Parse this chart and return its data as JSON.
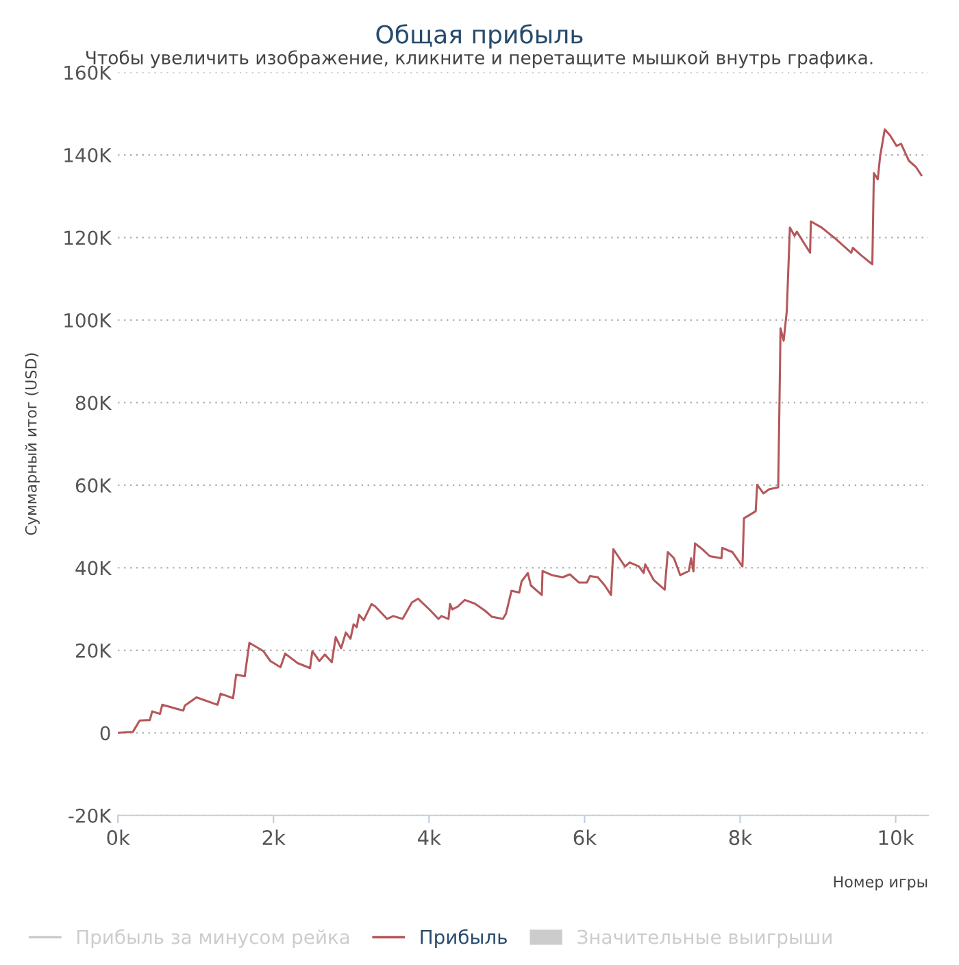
{
  "chart_data": {
    "type": "line",
    "title": "Общая прибыль",
    "subtitle": "Чтобы увеличить изображение, кликните и перетащите мышкой внутрь графика.",
    "xlabel": "Номер игры",
    "ylabel": "Суммарный итог (USD)",
    "xlim": [
      0,
      10420
    ],
    "ylim": [
      -20000,
      160000
    ],
    "xticks": [
      {
        "value": 0,
        "label": "0k"
      },
      {
        "value": 2000,
        "label": "2k"
      },
      {
        "value": 4000,
        "label": "4k"
      },
      {
        "value": 6000,
        "label": "6k"
      },
      {
        "value": 8000,
        "label": "8k"
      },
      {
        "value": 10000,
        "label": "10k"
      }
    ],
    "yticks": [
      {
        "value": -20000,
        "label": "-20K"
      },
      0,
      {
        "value": 20000,
        "label": "20K"
      },
      {
        "value": 40000,
        "label": "40K"
      },
      {
        "value": 60000,
        "label": "60K"
      },
      {
        "value": 80000,
        "label": "80K"
      },
      {
        "value": 100000,
        "label": "100K"
      },
      {
        "value": 120000,
        "label": "120K"
      },
      {
        "value": 140000,
        "label": "140K"
      },
      {
        "value": 160000,
        "label": "160K"
      }
    ],
    "grid": "y",
    "legend": "bottom",
    "series": [
      {
        "name": "Прибыль за минусом рейка",
        "color": "#cccccc",
        "type": "line"
      },
      {
        "name": "Прибыль",
        "color": "#b5575a",
        "x": [
          0,
          190,
          280,
          410,
          440,
          540,
          570,
          840,
          860,
          1010,
          1280,
          1320,
          1480,
          1520,
          1630,
          1690,
          1870,
          1960,
          2090,
          2150,
          2310,
          2470,
          2500,
          2590,
          2660,
          2750,
          2800,
          2870,
          2930,
          2990,
          3030,
          3070,
          3100,
          3160,
          3260,
          3310,
          3460,
          3540,
          3660,
          3780,
          3860,
          4020,
          4120,
          4160,
          4250,
          4270,
          4300,
          4370,
          4460,
          4590,
          4720,
          4810,
          4950,
          4990,
          5060,
          5160,
          5190,
          5270,
          5310,
          5450,
          5460,
          5580,
          5720,
          5810,
          5930,
          6030,
          6070,
          6170,
          6260,
          6340,
          6370,
          6520,
          6580,
          6700,
          6760,
          6780,
          6890,
          7030,
          7070,
          7150,
          7230,
          7340,
          7370,
          7400,
          7420,
          7520,
          7610,
          7760,
          7770,
          7900,
          8030,
          8050,
          8140,
          8200,
          8220,
          8300,
          8370,
          8490,
          8520,
          8560,
          8600,
          8640,
          8700,
          8730,
          8900,
          8910,
          9050,
          9220,
          9430,
          9450,
          9550,
          9700,
          9720,
          9770,
          9800,
          9860,
          9930,
          10010,
          10070,
          10170,
          10260,
          10330
        ],
        "values": [
          0,
          200,
          3000,
          3100,
          5200,
          4600,
          6800,
          5400,
          6600,
          8600,
          6800,
          9500,
          8400,
          14100,
          13700,
          21800,
          19800,
          17400,
          15900,
          19200,
          16900,
          15700,
          19800,
          17400,
          19000,
          17100,
          23200,
          20500,
          24300,
          22800,
          26300,
          25600,
          28600,
          27300,
          31200,
          30600,
          27600,
          28300,
          27600,
          31600,
          32500,
          29600,
          27600,
          28300,
          27600,
          31200,
          29900,
          30600,
          32200,
          31300,
          29600,
          28100,
          27600,
          28900,
          34400,
          34000,
          36700,
          38700,
          35700,
          33400,
          39200,
          38200,
          37700,
          38400,
          36400,
          36400,
          38000,
          37700,
          35700,
          33400,
          44500,
          40300,
          41300,
          40300,
          38700,
          40800,
          37000,
          34700,
          43800,
          42300,
          38200,
          39200,
          42300,
          39100,
          45900,
          44400,
          42800,
          42300,
          44800,
          43800,
          40300,
          52000,
          53000,
          53700,
          60100,
          58000,
          59000,
          59500,
          98000,
          95000,
          102100,
          122400,
          120400,
          121400,
          116300,
          123900,
          122400,
          119800,
          116300,
          117500,
          115800,
          113500,
          135600,
          134100,
          139600,
          146200,
          144700,
          142200,
          142700,
          138600,
          137100,
          135100
        ]
      },
      {
        "name": "Значительные выигрыши",
        "color": "#cccccc",
        "type": "scatter"
      }
    ]
  }
}
